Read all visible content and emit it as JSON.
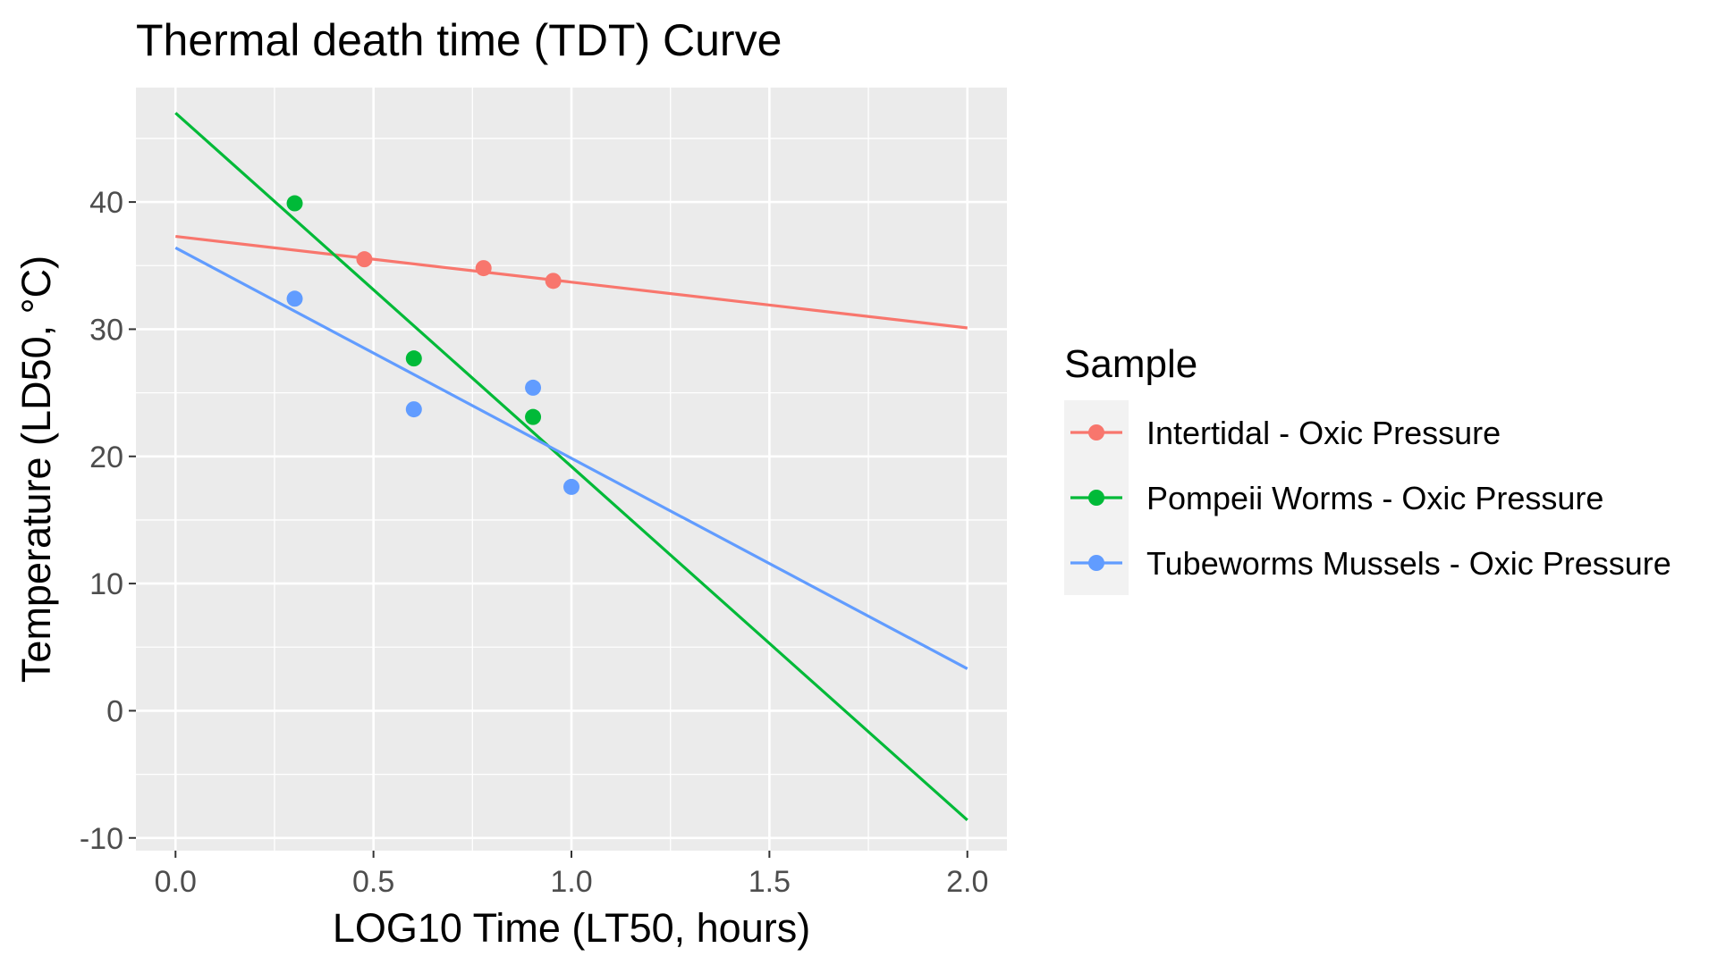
{
  "chart_data": {
    "type": "scatter",
    "title": "Thermal death time (TDT) Curve",
    "xlabel": "LOG10 Time (LT50, hours)",
    "ylabel": "Temperature (LD50, °C)",
    "xlim": [
      -0.1,
      2.1
    ],
    "ylim": [
      -11,
      49
    ],
    "xticks": [
      0.0,
      0.5,
      1.0,
      1.5,
      2.0
    ],
    "xtick_labels": [
      "0.0",
      "0.5",
      "1.0",
      "1.5",
      "2.0"
    ],
    "yticks": [
      -10,
      0,
      10,
      20,
      30,
      40
    ],
    "ytick_labels": [
      "-10",
      "0",
      "10",
      "20",
      "30",
      "40"
    ],
    "grid": true,
    "panel_background": "#ebebeb",
    "legend": {
      "title": "Sample",
      "position": "right"
    },
    "series": [
      {
        "name": "Intertidal - Oxic Pressure",
        "color": "#f8766d",
        "points": [
          {
            "x": 0.477,
            "y": 35.5
          },
          {
            "x": 0.778,
            "y": 34.8
          },
          {
            "x": 0.954,
            "y": 33.8
          }
        ],
        "fit": {
          "x": [
            0.0,
            2.0
          ],
          "y": [
            37.3,
            30.1
          ]
        }
      },
      {
        "name": "Pompeii Worms - Oxic Pressure",
        "color": "#00ba38",
        "points": [
          {
            "x": 0.301,
            "y": 39.9
          },
          {
            "x": 0.602,
            "y": 27.7
          },
          {
            "x": 0.903,
            "y": 23.1
          }
        ],
        "fit": {
          "x": [
            0.0,
            2.0
          ],
          "y": [
            47.0,
            -8.6
          ]
        }
      },
      {
        "name": "Tubeworms Mussels - Oxic Pressure",
        "color": "#619cff",
        "points": [
          {
            "x": 0.301,
            "y": 32.4
          },
          {
            "x": 0.602,
            "y": 23.7
          },
          {
            "x": 0.903,
            "y": 25.4
          },
          {
            "x": 1.0,
            "y": 17.6
          }
        ],
        "fit": {
          "x": [
            0.0,
            2.0
          ],
          "y": [
            36.4,
            3.3
          ]
        }
      }
    ]
  }
}
